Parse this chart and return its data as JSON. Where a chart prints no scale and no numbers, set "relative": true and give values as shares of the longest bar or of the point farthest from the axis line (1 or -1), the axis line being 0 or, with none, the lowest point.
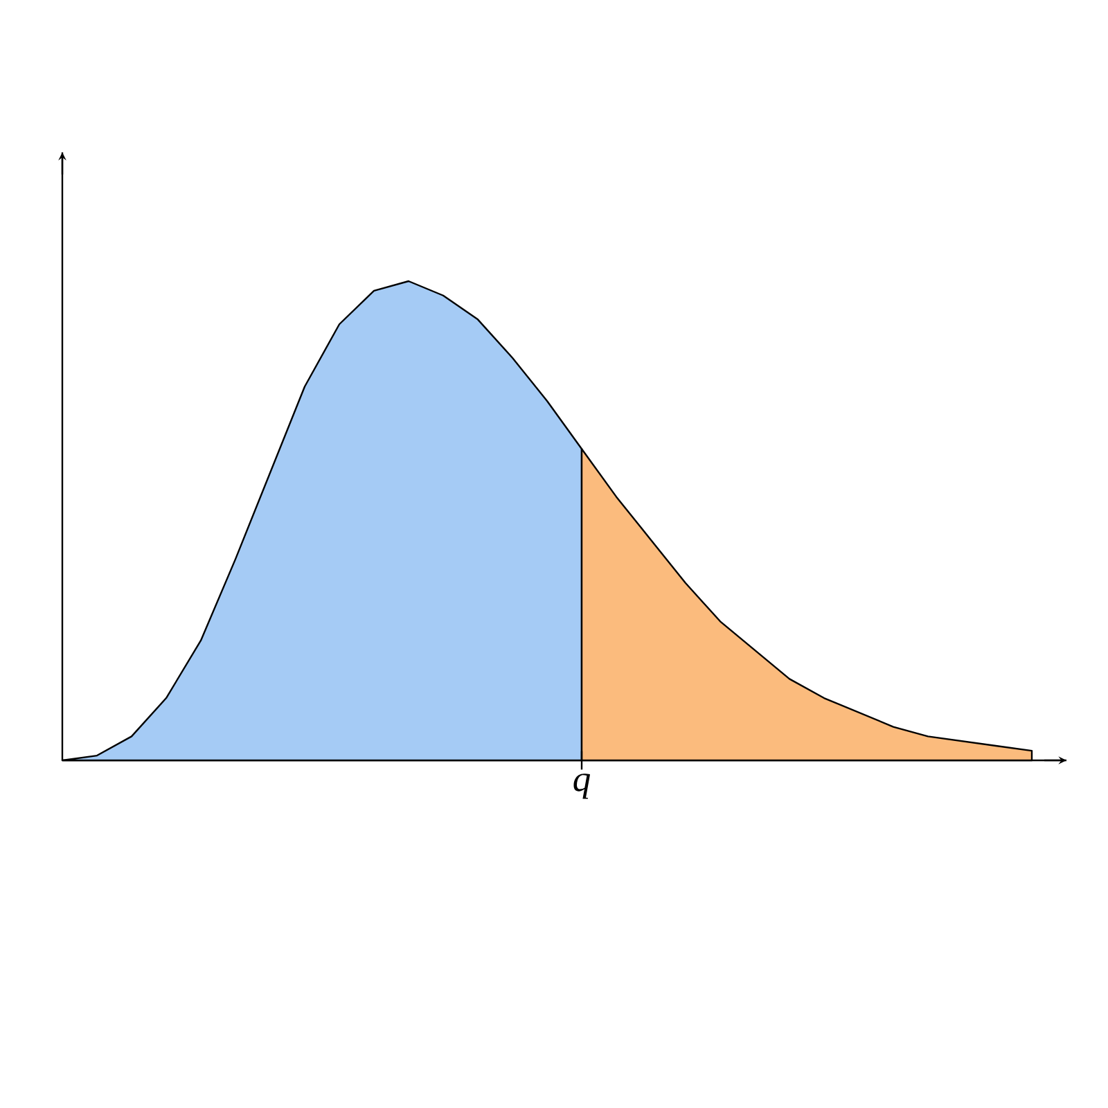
{
  "chart_data": {
    "type": "area",
    "relative": true,
    "categories": [
      null,
      null,
      null,
      null,
      null,
      null,
      null,
      null,
      null,
      null,
      null,
      null,
      null,
      null,
      null,
      null,
      null,
      null,
      null,
      null,
      null,
      null,
      null,
      null,
      null,
      null,
      null,
      null,
      null
    ],
    "annotations": [
      "q"
    ],
    "series": [
      {
        "color": "#a5cbf5",
        "values": [
          0,
          0.01,
          0.05,
          0.13,
          0.25,
          0.42,
          0.6,
          0.78,
          0.91,
          0.98,
          1,
          0.97,
          0.92,
          0.84,
          0.75,
          0.65,
          null,
          null,
          null,
          null,
          null,
          null,
          null,
          null,
          null,
          null,
          null,
          null,
          null
        ]
      },
      {
        "color": "#fbbb7d",
        "values": [
          null,
          null,
          null,
          null,
          null,
          null,
          null,
          null,
          null,
          null,
          null,
          null,
          null,
          null,
          null,
          0.65,
          0.55,
          0.46,
          0.37,
          0.29,
          0.23,
          0.17,
          0.13,
          0.1,
          0.07,
          0.05,
          0.04,
          0.03,
          0.02
        ]
      }
    ]
  }
}
